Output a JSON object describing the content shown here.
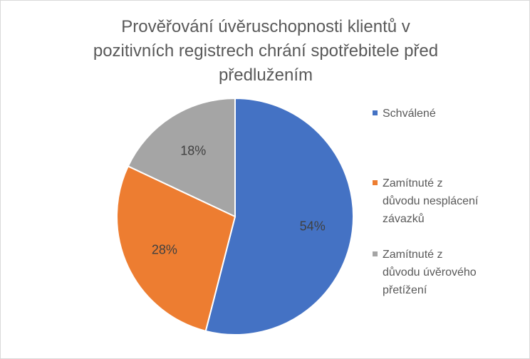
{
  "chart_data": {
    "type": "pie",
    "title_lines": [
      "Prověřování úvěruschopnosti klientů v",
      "pozitivních registrech chrání  spotřebitele před",
      "předlužením"
    ],
    "categories": [
      "Schválené",
      "Zamítnuté z důvodu nesplácení závazků",
      "Zamítnuté z důvodu úvěrového přetížení"
    ],
    "values": [
      54,
      28,
      18
    ],
    "data_labels": [
      "54%",
      "28%",
      "18%"
    ],
    "colors": [
      "#4472c4",
      "#ed7d31",
      "#a5a5a5"
    ],
    "legend_position": "right",
    "legend": [
      {
        "lines": [
          "Schválené"
        ],
        "color": "#4472c4"
      },
      {
        "lines": [
          "Zamítnuté z",
          "důvodu nesplácení",
          "závazků"
        ],
        "color": "#ed7d31"
      },
      {
        "lines": [
          "Zamítnuté z",
          "důvodu úvěrového",
          "přetížení"
        ],
        "color": "#a5a5a5"
      }
    ]
  }
}
